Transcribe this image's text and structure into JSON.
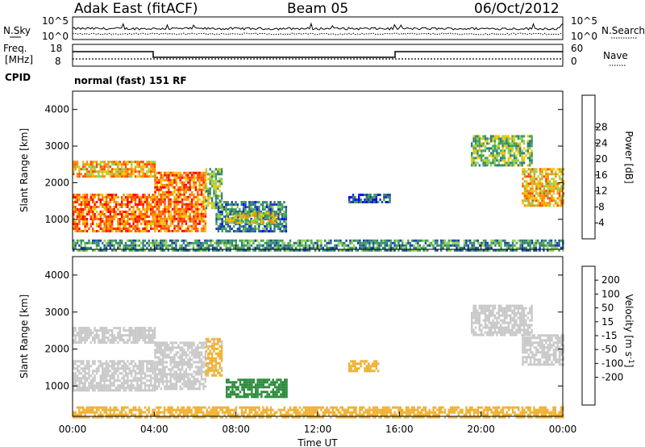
{
  "header": {
    "station": "Adak East (fitACF)",
    "beam": "Beam 05",
    "date": "06/Oct/2012"
  },
  "noise_panel": {
    "left_label": "N.Sky",
    "right_label": "N.Search",
    "left_ticks": [
      "10^5",
      "10^0"
    ],
    "right_ticks": [
      "10^5",
      "10^0"
    ]
  },
  "freq_panel": {
    "left_label_1": "Freq.",
    "left_label_2": "[MHz]",
    "left_ticks": [
      "18",
      "8"
    ],
    "right_label": "Nave",
    "right_ticks": [
      "60",
      "0"
    ],
    "cpid_label": "CPID",
    "cpid_text": "normal (fast) 151 RF"
  },
  "colors": {
    "power": [
      "#0000ff",
      "#1a3fae",
      "#2f7a7a",
      "#3fa05a",
      "#8fd24a",
      "#f2c400",
      "#ff8a00",
      "#ff4a00",
      "#ff0000"
    ],
    "velocity": [
      "#ff0000",
      "#ff5a00",
      "#ff8c00",
      "#f0b030",
      "#c8c8c8",
      "#c8c8c8",
      "#7cd02c",
      "#2a8a3a",
      "#1a6aa0",
      "#1010b0"
    ]
  },
  "chart_data": [
    {
      "type": "heatmap",
      "name": "power",
      "ylabel": "Slant Range [km]",
      "y_ticks": [
        "1000",
        "2000",
        "3000",
        "4000"
      ],
      "y_values": [
        1000,
        2000,
        3000,
        4000
      ],
      "ylim": [
        180,
        4500
      ],
      "xlim_hours": [
        0,
        24
      ],
      "colorbar_label": "Power [dB]",
      "colorbar_ticks": [
        "4",
        "8",
        "12",
        "16",
        "20",
        "24",
        "28"
      ],
      "colorbar_values": [
        4,
        8,
        12,
        16,
        20,
        24,
        28
      ],
      "regions": [
        {
          "t0": 0.0,
          "t1": 4.0,
          "r0": 700,
          "r1": 1700,
          "value": 28
        },
        {
          "t0": 0.0,
          "t1": 4.0,
          "r0": 2200,
          "r1": 2600,
          "value": 24
        },
        {
          "t0": 4.0,
          "t1": 6.5,
          "r0": 700,
          "r1": 2300,
          "value": 28
        },
        {
          "t0": 6.5,
          "t1": 7.3,
          "r0": 1300,
          "r1": 2400,
          "value": 16
        },
        {
          "t0": 7.0,
          "t1": 10.5,
          "r0": 700,
          "r1": 1500,
          "value": 10
        },
        {
          "t0": 7.5,
          "t1": 10.0,
          "r0": 900,
          "r1": 1200,
          "value": 20
        },
        {
          "t0": 13.5,
          "t1": 15.5,
          "r0": 1450,
          "r1": 1700,
          "value": 8
        },
        {
          "t0": 19.5,
          "t1": 22.5,
          "r0": 2500,
          "r1": 3300,
          "value": 16
        },
        {
          "t0": 22.0,
          "t1": 24.0,
          "r0": 1400,
          "r1": 2400,
          "value": 24
        },
        {
          "t0": 0.0,
          "t1": 24.0,
          "r0": 180,
          "r1": 450,
          "value": 12
        }
      ]
    },
    {
      "type": "heatmap",
      "name": "velocity",
      "ylabel": "Slant Range [km]",
      "y_ticks": [
        "1000",
        "2000",
        "3000",
        "4000"
      ],
      "y_values": [
        1000,
        2000,
        3000,
        4000
      ],
      "ylim": [
        180,
        4500
      ],
      "xlim_hours": [
        0,
        24
      ],
      "x_ticks": [
        "00:00",
        "04:00",
        "08:00",
        "12:00",
        "16:00",
        "20:00",
        "00:00"
      ],
      "x_values": [
        0,
        4,
        8,
        12,
        16,
        20,
        24
      ],
      "xlabel": "Time UT",
      "colorbar_label": "Velocity [m s^-1]",
      "colorbar_ticks": [
        "200",
        "100",
        "50",
        "15",
        "-15",
        "-50",
        "-100",
        "-200"
      ],
      "colorbar_values": [
        200,
        100,
        50,
        15,
        -15,
        -50,
        -100,
        -200
      ],
      "regions": [
        {
          "t0": 0.0,
          "t1": 4.0,
          "r0": 900,
          "r1": 1700,
          "value": 0
        },
        {
          "t0": 0.0,
          "t1": 4.0,
          "r0": 2200,
          "r1": 2600,
          "value": 0
        },
        {
          "t0": 4.0,
          "t1": 6.5,
          "r0": 900,
          "r1": 2200,
          "value": 0
        },
        {
          "t0": 6.5,
          "t1": 7.3,
          "r0": 1300,
          "r1": 2300,
          "value": -20
        },
        {
          "t0": 7.5,
          "t1": 10.5,
          "r0": 700,
          "r1": 1200,
          "value": 60
        },
        {
          "t0": 13.5,
          "t1": 15.0,
          "r0": 1400,
          "r1": 1700,
          "value": -40
        },
        {
          "t0": 19.5,
          "t1": 22.5,
          "r0": 2400,
          "r1": 3200,
          "value": 0
        },
        {
          "t0": 22.0,
          "t1": 24.0,
          "r0": 1600,
          "r1": 2400,
          "value": 0
        },
        {
          "t0": 0.0,
          "t1": 24.0,
          "r0": 180,
          "r1": 450,
          "value": -40
        }
      ]
    }
  ]
}
